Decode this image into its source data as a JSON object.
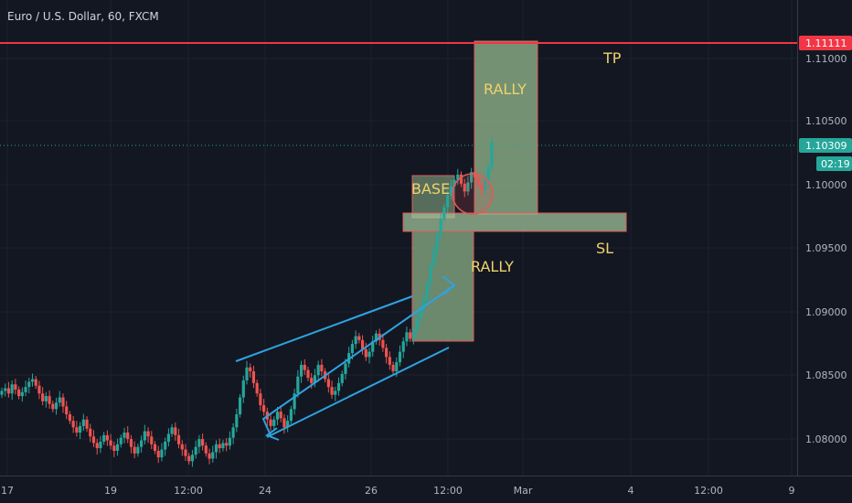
{
  "header": {
    "title": "Euro / U.S. Dollar, 60, FXCM"
  },
  "colors": {
    "background": "#131722",
    "grid": "#1e222d",
    "up": "#26a69a",
    "down": "#ef5350",
    "resistance": "#f23645",
    "zone_fill": "#8fb48a",
    "zone_border": "#e05a5a",
    "channel": "#2ea3e0",
    "label": "#f0d26b",
    "current": "#26a69a"
  },
  "chart_data": {
    "type": "candlestick",
    "symbol": "Euro / U.S. Dollar",
    "timeframe": "60",
    "source": "FXCM",
    "x_ticks": [
      "17",
      "19",
      "12:00",
      "24",
      "26",
      "12:00",
      "Mar",
      "4",
      "12:00",
      "9"
    ],
    "y_ticks": [
      "1.11000",
      "1.10500",
      "1.10000",
      "1.09500",
      "1.09000",
      "1.08500",
      "1.08000"
    ],
    "ylim": [
      1.0775,
      1.114
    ],
    "resistance_level": "1.11111",
    "current_price": "1.10309",
    "countdown": "02:19",
    "annotations": {
      "tp": "TP",
      "sl": "SL",
      "rally_upper": "RALLY",
      "rally_lower": "RALLY",
      "base": "BASE"
    },
    "price_path": [
      1.084,
      1.0842,
      1.0838,
      1.0845,
      1.0841,
      1.0836,
      1.0839,
      1.0843,
      1.0847,
      1.0849,
      1.0844,
      1.0838,
      1.0832,
      1.0836,
      1.083,
      1.0826,
      1.0831,
      1.0835,
      1.0828,
      1.0822,
      1.0817,
      1.0812,
      1.0808,
      1.0813,
      1.0818,
      1.0811,
      1.0805,
      1.08,
      1.0796,
      1.0801,
      1.0806,
      1.0802,
      1.0798,
      1.0794,
      1.0799,
      1.0804,
      1.0808,
      1.0803,
      1.0797,
      1.0792,
      1.0797,
      1.0802,
      1.0809,
      1.0805,
      1.0799,
      1.0794,
      1.0789,
      1.0795,
      1.0801,
      1.0807,
      1.0812,
      1.0806,
      1.0799,
      1.0795,
      1.079,
      1.0786,
      1.0791,
      1.0797,
      1.0803,
      1.0798,
      1.0792,
      1.0788,
      1.0793,
      1.0799,
      1.0796,
      1.08,
      1.0798,
      1.0804,
      1.0812,
      1.0822,
      1.0835,
      1.0848,
      1.0858,
      1.0855,
      1.0846,
      1.0838,
      1.0829,
      1.0824,
      1.0818,
      1.0813,
      1.0818,
      1.0824,
      1.0819,
      1.0812,
      1.0817,
      1.0826,
      1.0838,
      1.0851,
      1.086,
      1.0856,
      1.085,
      1.0846,
      1.0852,
      1.086,
      1.0855,
      1.0849,
      1.0843,
      1.0837,
      1.084,
      1.0846,
      1.0853,
      1.0861,
      1.0869,
      1.0876,
      1.0882,
      1.0879,
      1.0872,
      1.0866,
      1.087,
      1.0878,
      1.0884,
      1.0879,
      1.0873,
      1.0866,
      1.086,
      1.0855,
      1.0862,
      1.087,
      1.0878,
      1.0885,
      1.088,
      1.0887,
      1.0895,
      1.0902,
      1.091,
      1.0922,
      1.0936,
      1.0948,
      1.096,
      1.0972,
      1.0981,
      1.099,
      1.0997,
      1.1002,
      1.1006,
      1.0999,
      1.0993,
      1.1,
      1.1008,
      1.1004,
      1.0998,
      1.0994,
      1.1001,
      1.1012,
      1.1031
    ]
  }
}
